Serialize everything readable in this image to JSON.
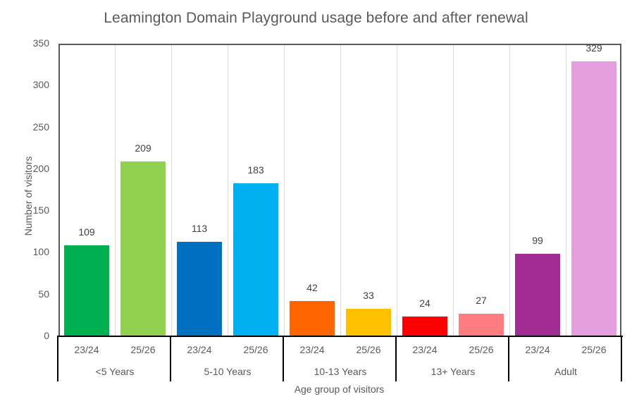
{
  "chart_data": {
    "type": "bar",
    "title": "Leamington Domain Playground usage before and after renewal",
    "xlabel": "Age group of visitors",
    "ylabel": "Number of visitors",
    "ylim": [
      0,
      350
    ],
    "yticks": [
      "0",
      "50",
      "100",
      "150",
      "200",
      "250",
      "300",
      "350"
    ],
    "grid": "vertical separators between bars",
    "legend": "none",
    "groups": [
      "<5 Years",
      "5-10 Years",
      "10-13 Years",
      "13+ Years",
      "Adult"
    ],
    "subcategories": [
      "23/24",
      "25/26"
    ],
    "categories": [
      "<5 Years 23/24",
      "<5 Years 25/26",
      "5-10 Years 23/24",
      "5-10 Years 25/26",
      "10-13 Years 23/24",
      "10-13 Years 25/26",
      "13+ Years 23/24",
      "13+ Years 25/26",
      "Adult 23/24",
      "Adult 25/26"
    ],
    "series": [
      {
        "name": "23/24",
        "values": [
          109,
          113,
          42,
          24,
          99
        ]
      },
      {
        "name": "25/26",
        "values": [
          209,
          183,
          33,
          27,
          329
        ]
      }
    ],
    "bars": [
      {
        "group": "<5 Years",
        "period": "23/24",
        "value": 109,
        "label": "109",
        "color": "#00B050"
      },
      {
        "group": "<5 Years",
        "period": "25/26",
        "value": 209,
        "label": "209",
        "color": "#92D050"
      },
      {
        "group": "5-10 Years",
        "period": "23/24",
        "value": 113,
        "label": "113",
        "color": "#0070C0"
      },
      {
        "group": "5-10 Years",
        "period": "25/26",
        "value": 183,
        "label": "183",
        "color": "#00B0F0"
      },
      {
        "group": "10-13 Years",
        "period": "23/24",
        "value": 42,
        "label": "42",
        "color": "#FF6600"
      },
      {
        "group": "10-13 Years",
        "period": "25/26",
        "value": 33,
        "label": "33",
        "color": "#FFC000"
      },
      {
        "group": "13+ Years",
        "period": "23/24",
        "value": 24,
        "label": "24",
        "color": "#FF0000"
      },
      {
        "group": "13+ Years",
        "period": "25/26",
        "value": 27,
        "label": "27",
        "color": "#FF7C80"
      },
      {
        "group": "Adult",
        "period": "23/24",
        "value": 99,
        "label": "99",
        "color": "#A02B93"
      },
      {
        "group": "Adult",
        "period": "25/26",
        "value": 329,
        "label": "329",
        "color": "#E49EDD"
      }
    ]
  }
}
